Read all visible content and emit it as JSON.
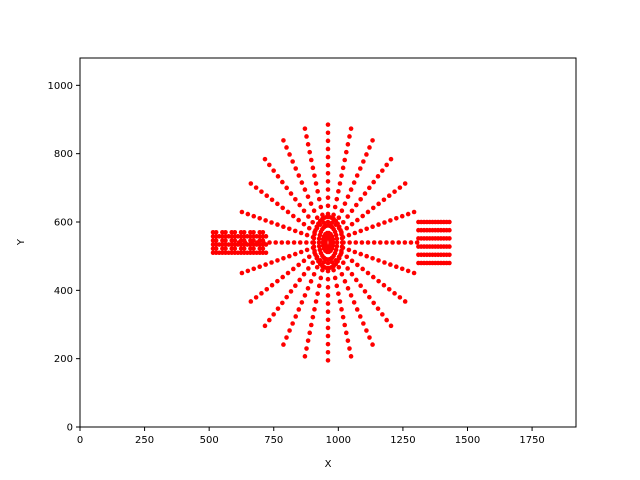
{
  "chart_data": {
    "type": "scatter",
    "title": "",
    "xlabel": "X",
    "ylabel": "Y",
    "xlim": [
      0,
      1920
    ],
    "ylim": [
      0,
      1080
    ],
    "xticks": [
      0,
      250,
      500,
      750,
      1000,
      1250,
      1500,
      1750
    ],
    "yticks": [
      0,
      200,
      400,
      600,
      800,
      1000
    ],
    "grid": false,
    "legend": "none",
    "marker_color": "#ff0000",
    "pattern": {
      "center": [
        960,
        540
      ],
      "rays": [
        {
          "angle_deg": 90,
          "r_min": 60,
          "r_max": 345
        },
        {
          "angle_deg": 75,
          "r_min": 60,
          "r_max": 345
        },
        {
          "angle_deg": 60,
          "r_min": 60,
          "r_max": 345
        },
        {
          "angle_deg": 45,
          "r_min": 60,
          "r_max": 345
        },
        {
          "angle_deg": 30,
          "r_min": 60,
          "r_max": 345
        },
        {
          "angle_deg": 15,
          "r_min": 60,
          "r_max": 345
        },
        {
          "angle_deg": 0,
          "r_min": 60,
          "r_max": 345
        },
        {
          "angle_deg": -15,
          "r_min": 60,
          "r_max": 345
        },
        {
          "angle_deg": -30,
          "r_min": 60,
          "r_max": 345
        },
        {
          "angle_deg": -45,
          "r_min": 60,
          "r_max": 345
        },
        {
          "angle_deg": -60,
          "r_min": 60,
          "r_max": 345
        },
        {
          "angle_deg": -75,
          "r_min": 60,
          "r_max": 345
        },
        {
          "angle_deg": -90,
          "r_min": 60,
          "r_max": 345
        },
        {
          "angle_deg": -105,
          "r_min": 60,
          "r_max": 345
        },
        {
          "angle_deg": -120,
          "r_min": 60,
          "r_max": 345
        },
        {
          "angle_deg": -135,
          "r_min": 60,
          "r_max": 345
        },
        {
          "angle_deg": -150,
          "r_min": 60,
          "r_max": 345
        },
        {
          "angle_deg": -165,
          "r_min": 60,
          "r_max": 345
        },
        {
          "angle_deg": 180,
          "r_min": 60,
          "r_max": 345
        },
        {
          "angle_deg": 165,
          "r_min": 60,
          "r_max": 345
        },
        {
          "angle_deg": 150,
          "r_min": 60,
          "r_max": 345
        },
        {
          "angle_deg": 135,
          "r_min": 60,
          "r_max": 345
        },
        {
          "angle_deg": 120,
          "r_min": 60,
          "r_max": 345
        },
        {
          "angle_deg": 105,
          "r_min": 60,
          "r_max": 345
        }
      ],
      "rings": [
        {
          "rx": 20,
          "ry": 28
        },
        {
          "rx": 35,
          "ry": 50
        },
        {
          "rx": 55,
          "ry": 75
        }
      ],
      "clusters": [
        {
          "x_range": [
            515,
            720
          ],
          "y_range": [
            510,
            570
          ]
        },
        {
          "x_range": [
            1310,
            1430
          ],
          "y_range": [
            480,
            600
          ]
        }
      ]
    }
  }
}
